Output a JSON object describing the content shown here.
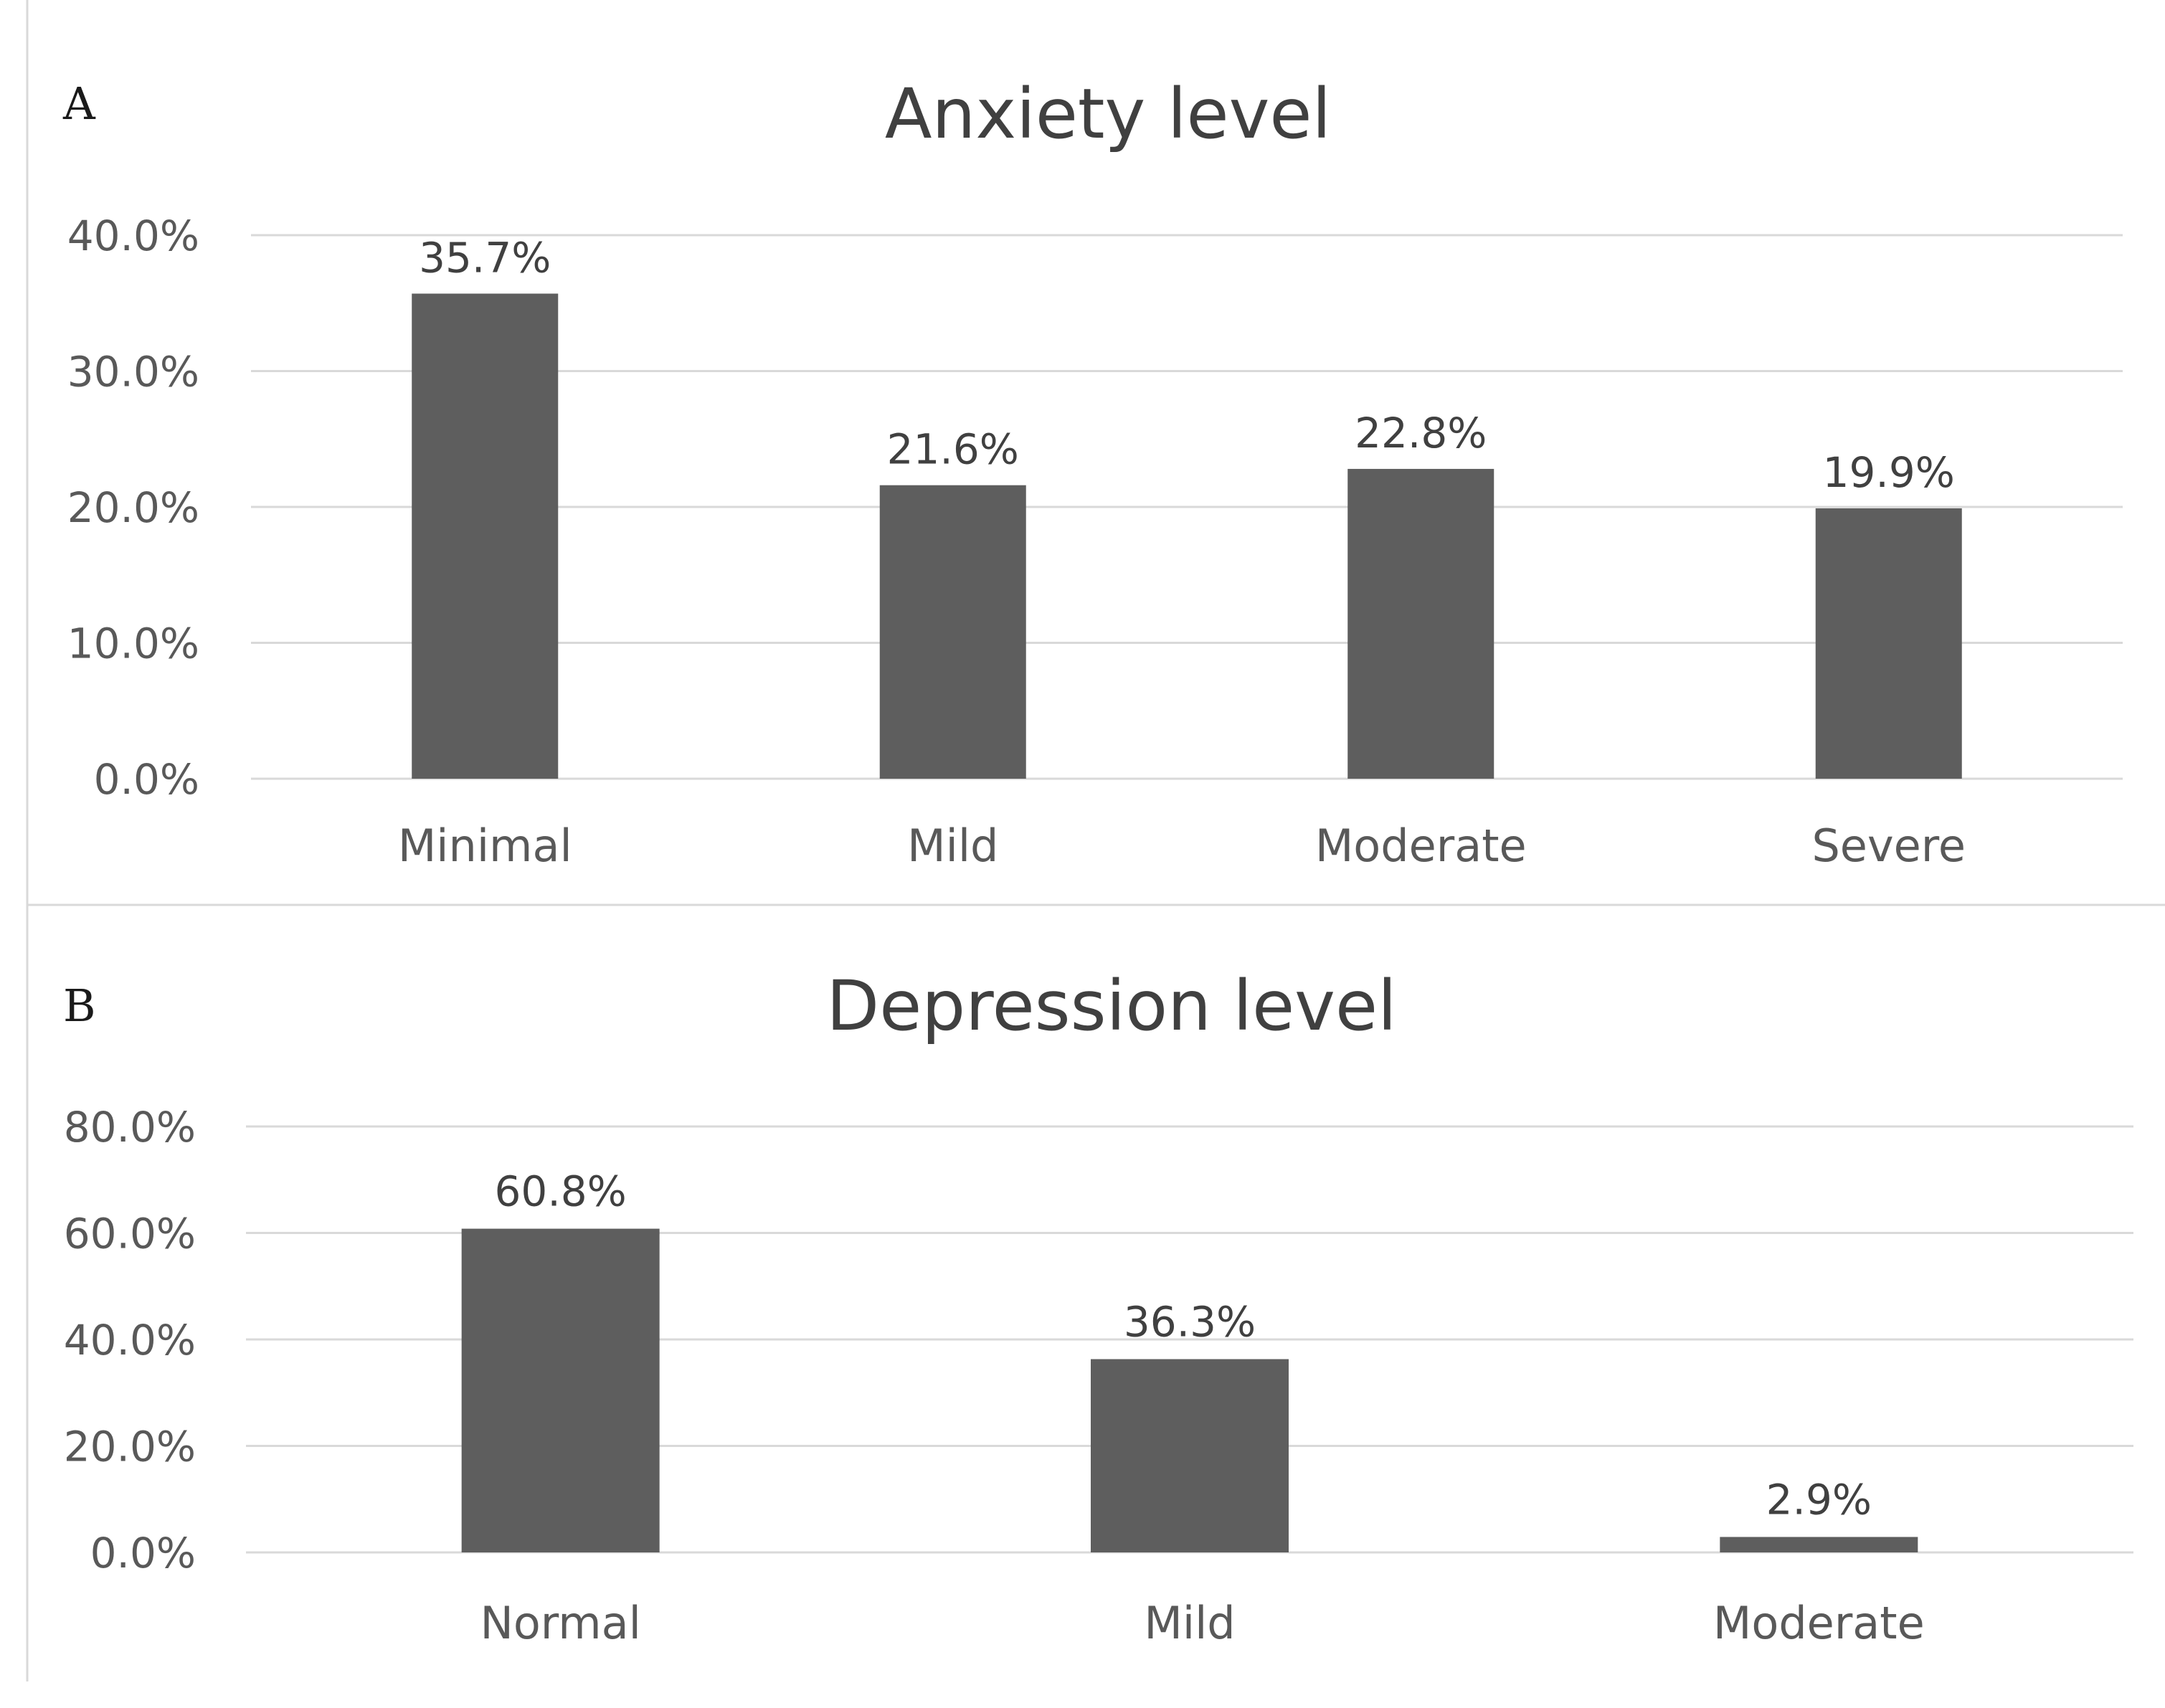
{
  "chart_data": [
    {
      "panel": "A",
      "type": "bar",
      "title": "Anxiety level",
      "xlabel": "",
      "ylabel": "",
      "categories": [
        "Minimal",
        "Mild",
        "Moderate",
        "Severe"
      ],
      "values": [
        35.7,
        21.6,
        22.8,
        19.9
      ],
      "value_labels": [
        "35.7%",
        "21.6%",
        "22.8%",
        "19.9%"
      ],
      "ylim": [
        0,
        40
      ],
      "yticks": [
        0,
        10,
        20,
        30,
        40
      ],
      "ytick_labels": [
        "0.0%",
        "10.0%",
        "20.0%",
        "30.0%",
        "40.0%"
      ],
      "grid": true,
      "legend": "none",
      "bar_color": "#5e5e5e"
    },
    {
      "panel": "B",
      "type": "bar",
      "title": "Depression level",
      "xlabel": "",
      "ylabel": "",
      "categories": [
        "Normal",
        "Mild",
        "Moderate"
      ],
      "values": [
        60.8,
        36.3,
        2.9
      ],
      "value_labels": [
        "60.8%",
        "36.3%",
        "2.9%"
      ],
      "ylim": [
        0,
        80
      ],
      "yticks": [
        0,
        20,
        40,
        60,
        80
      ],
      "ytick_labels": [
        "0.0%",
        "20.0%",
        "40.0%",
        "60.0%",
        "80.0%"
      ],
      "grid": true,
      "legend": "none",
      "bar_color": "#5e5e5e"
    }
  ]
}
